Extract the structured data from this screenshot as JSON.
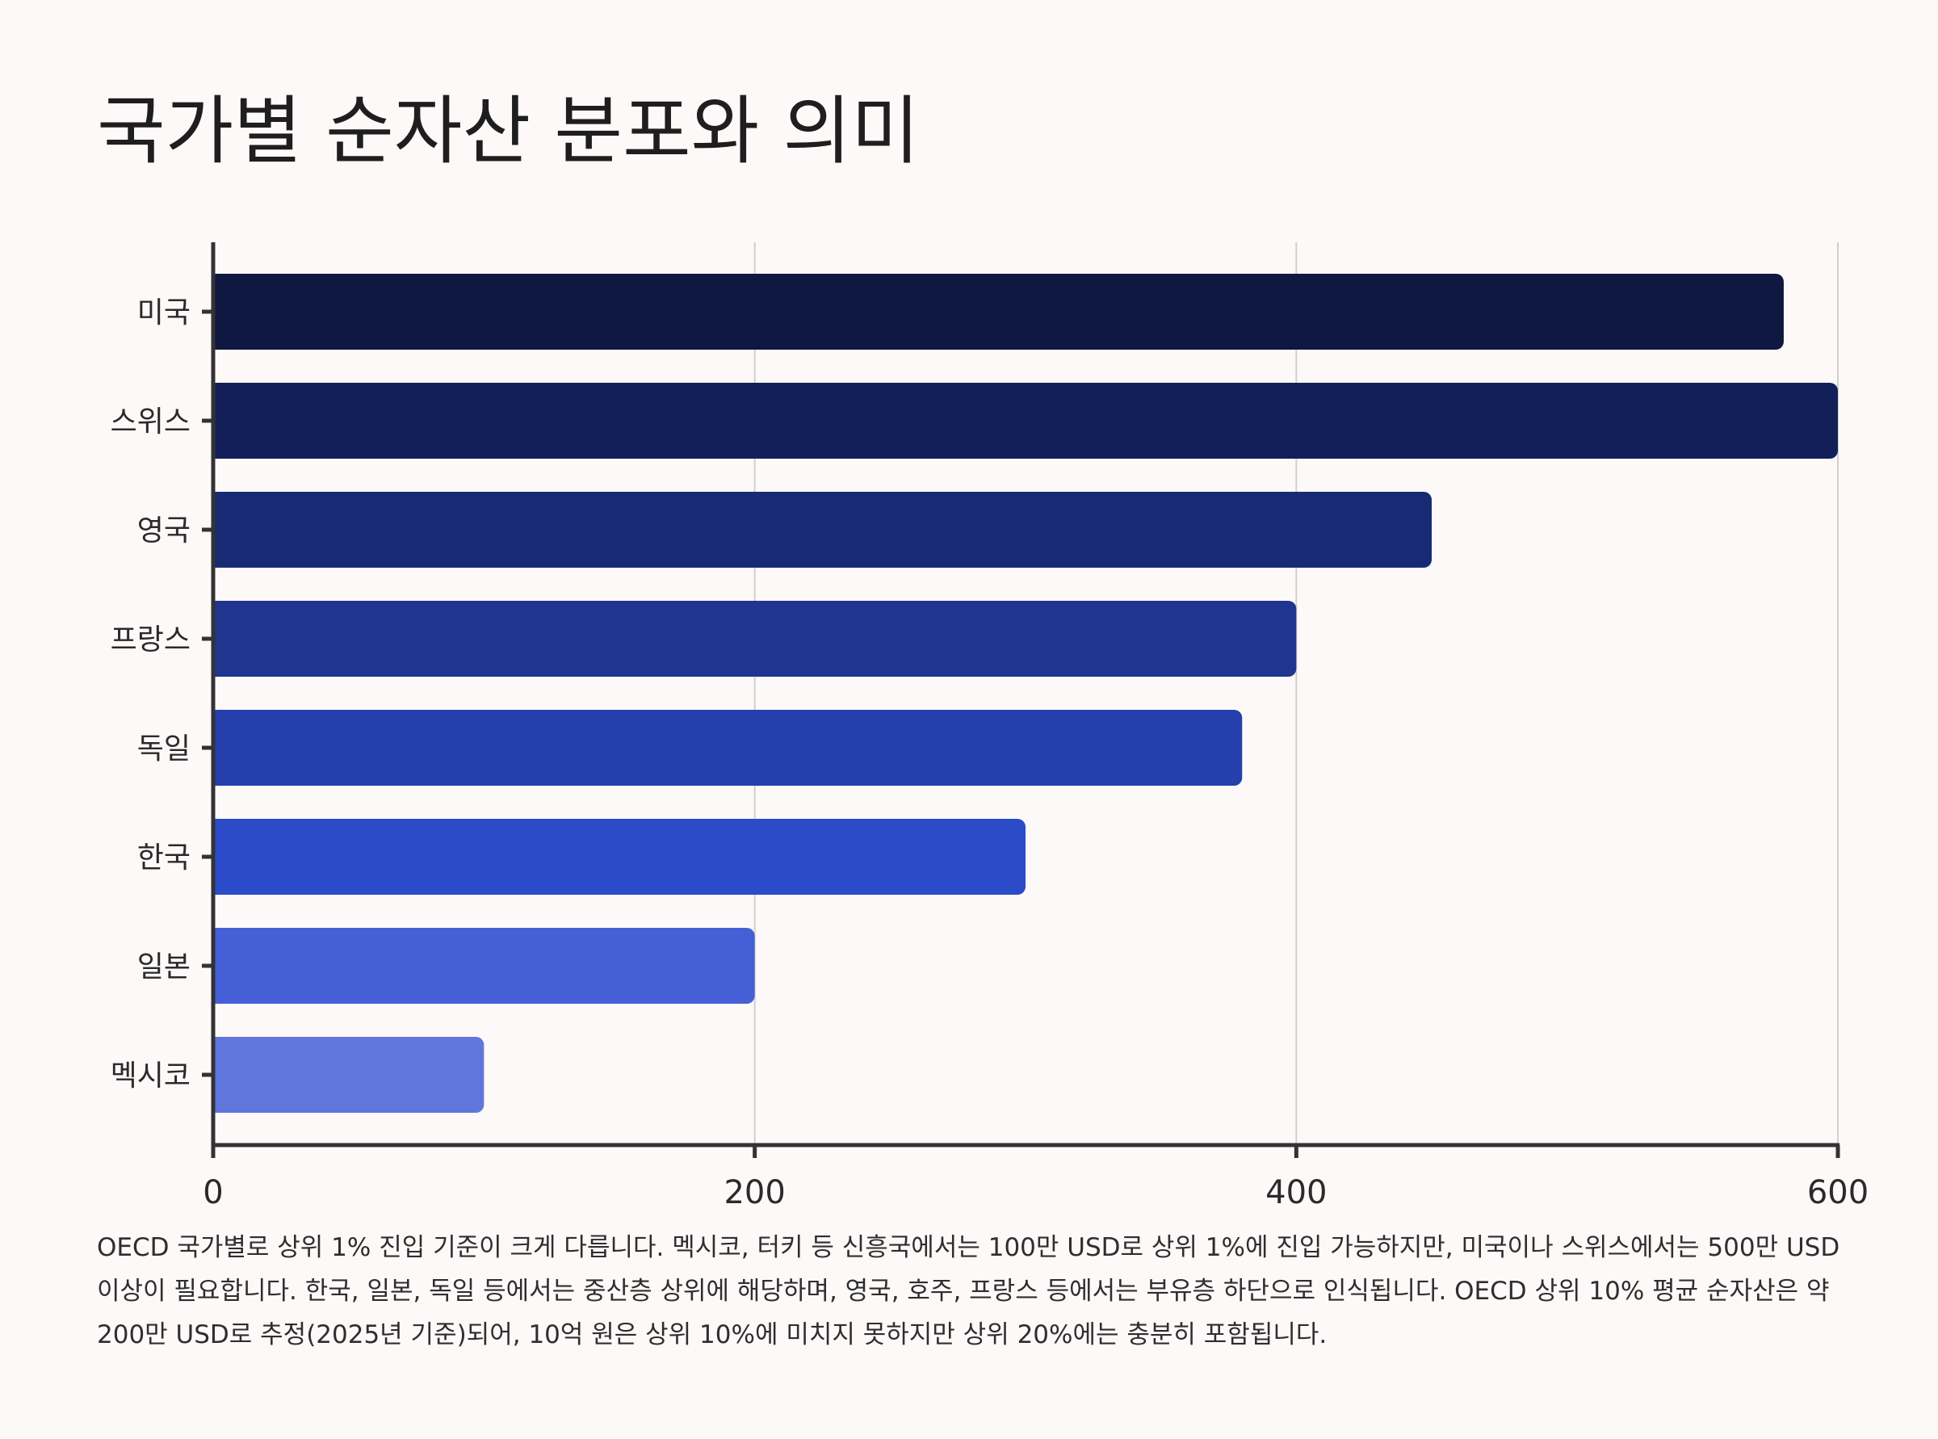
{
  "title": "국가별 순자산 분포와 의미",
  "chart_data": {
    "type": "bar",
    "orientation": "horizontal",
    "categories": [
      "미국",
      "스위스",
      "영국",
      "프랑스",
      "독일",
      "한국",
      "일본",
      "멕시코"
    ],
    "values": [
      580,
      600,
      450,
      400,
      380,
      300,
      200,
      100
    ],
    "colors": [
      "#0e1840",
      "#121f58",
      "#192a75",
      "#1f3590",
      "#2540ad",
      "#2c4bc8",
      "#4560d6",
      "#5f76dc"
    ],
    "xlim": [
      0,
      600
    ],
    "xticks": [
      0,
      200,
      400,
      600
    ],
    "xlabel": "",
    "ylabel": "",
    "grid": "vertical",
    "axis_color": "#333333",
    "grid_color": "#d0d0d0"
  },
  "caption": "OECD 국가별로 상위 1% 진입 기준이 크게 다릅니다. 멕시코, 터키 등 신흥국에서는 100만 USD로 상위 1%에 진입 가능하지만, 미국이나 스위스에서는 500만 USD 이상이 필요합니다. 한국, 일본, 독일 등에서는 중산층 상위에 해당하며, 영국, 호주, 프랑스 등에서는 부유층 하단으로 인식됩니다. OECD 상위 10% 평균 순자산은 약 200만 USD로 추정(2025년 기준)되어, 10억 원은 상위 10%에 미치지 못하지만 상위 20%에는 충분히 포함됩니다."
}
